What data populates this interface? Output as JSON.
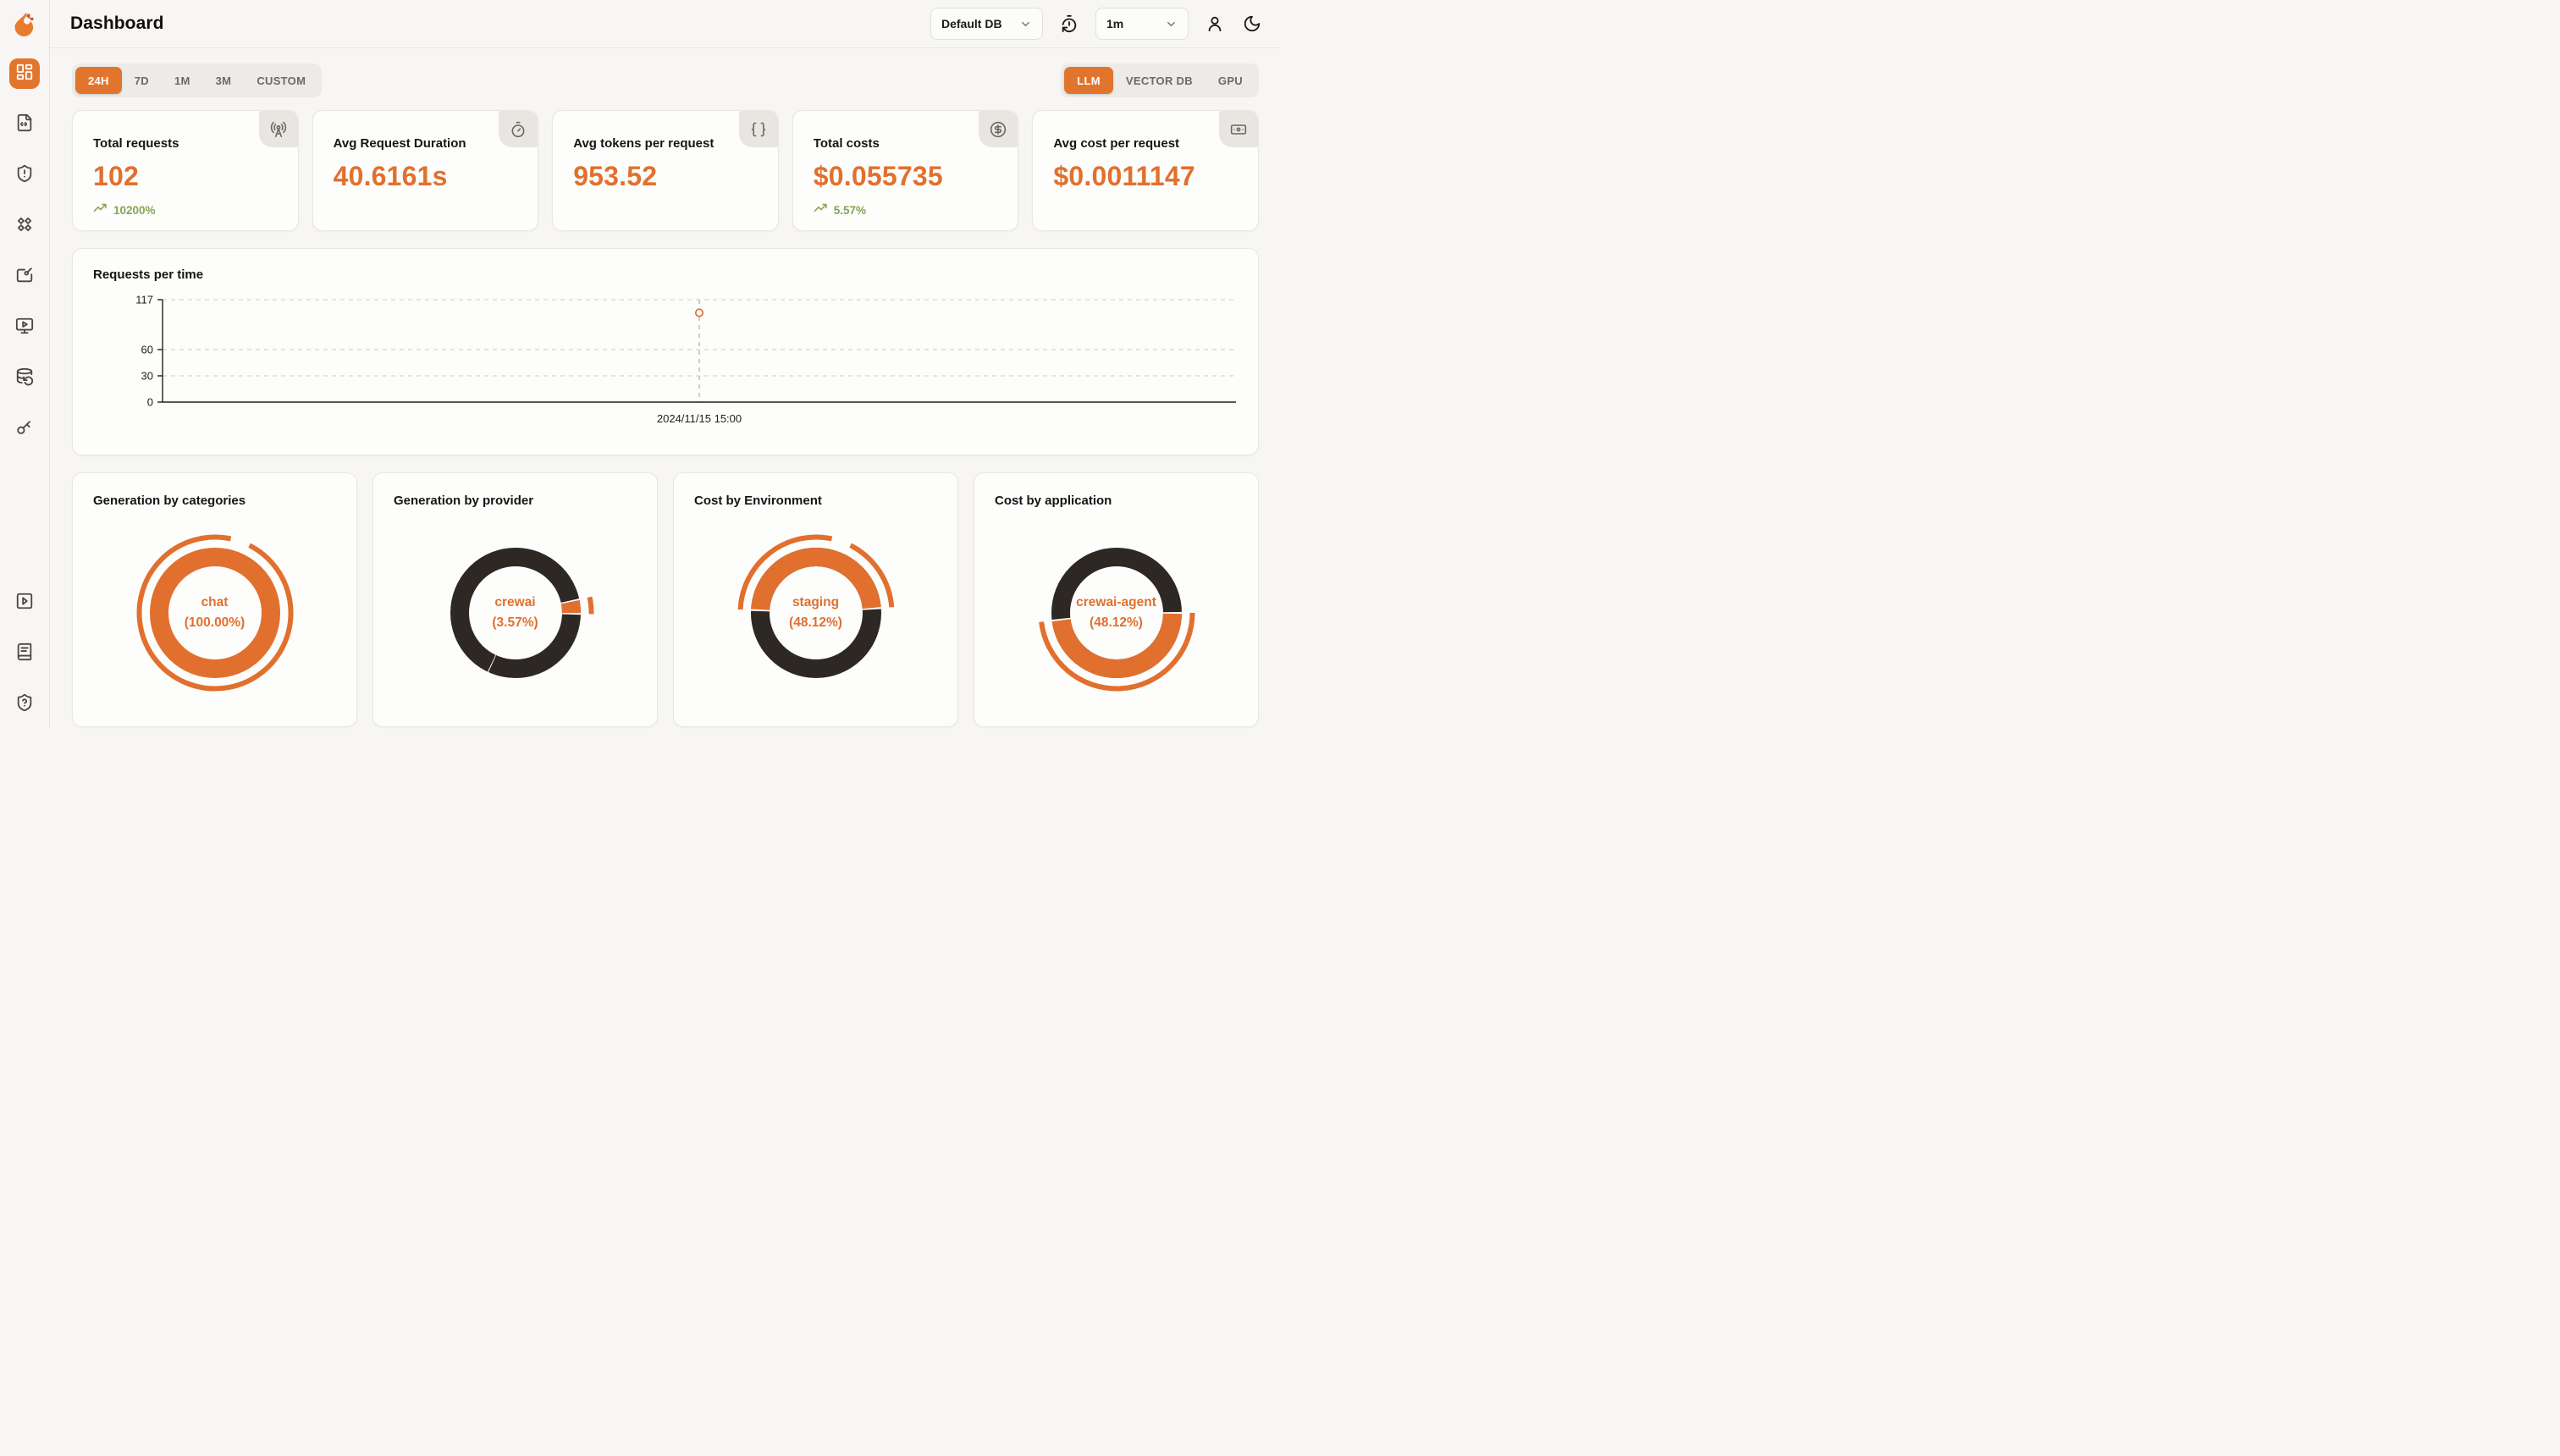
{
  "app": {
    "title": "Dashboard"
  },
  "colors": {
    "accent_orange": "#e1702f",
    "active_tab_orange": "#e2752e",
    "donut_dark": "#2e2824",
    "trend_green": "#84a552",
    "page_background": "#f7f6f4",
    "card_background": "#fdfdfc"
  },
  "header": {
    "db_select": {
      "value": "Default DB",
      "icon": "chevron-down-icon"
    },
    "interval_select": {
      "value": "1m",
      "icon": "chevron-down-icon"
    },
    "icons": [
      "timer-reset-icon",
      "user-icon",
      "moon-icon"
    ]
  },
  "sidebar": {
    "top_icons": [
      {
        "icon": "dashboard-grid-icon",
        "active": true
      },
      {
        "icon": "file-code-icon",
        "active": false
      },
      {
        "icon": "shield-alert-icon",
        "active": false
      },
      {
        "icon": "diamonds-icon",
        "active": false
      },
      {
        "icon": "edit-board-icon",
        "active": false
      },
      {
        "icon": "monitor-play-icon",
        "active": false
      },
      {
        "icon": "database-backup-icon",
        "active": false
      },
      {
        "icon": "key-icon",
        "active": false
      }
    ],
    "bottom_icons": [
      {
        "icon": "square-play-icon",
        "active": false
      },
      {
        "icon": "book-icon",
        "active": false
      },
      {
        "icon": "shield-question-icon",
        "active": false
      }
    ]
  },
  "filters": {
    "time_ranges": [
      {
        "label": "24H",
        "active": true
      },
      {
        "label": "7D",
        "active": false
      },
      {
        "label": "1M",
        "active": false
      },
      {
        "label": "3M",
        "active": false
      },
      {
        "label": "CUSTOM",
        "active": false
      }
    ],
    "resource_tabs": [
      {
        "label": "LLM",
        "active": true
      },
      {
        "label": "VECTOR DB",
        "active": false
      },
      {
        "label": "GPU",
        "active": false
      }
    ]
  },
  "stat_cards": [
    {
      "title": "Total requests",
      "value": "102",
      "trend": "10200%",
      "icon": "radio-tower-icon"
    },
    {
      "title": "Avg Request Duration",
      "value": "40.6161s",
      "trend": null,
      "icon": "timer-icon"
    },
    {
      "title": "Avg tokens per request",
      "value": "953.52",
      "trend": null,
      "icon": "braces-icon"
    },
    {
      "title": "Total costs",
      "value": "$0.055735",
      "trend": "5.57%",
      "icon": "dollar-circle-icon"
    },
    {
      "title": "Avg cost per request",
      "value": "$0.0011147",
      "trend": null,
      "icon": "banknote-icon"
    }
  ],
  "chart_data": [
    {
      "type": "line",
      "title": "Requests per time",
      "x": [
        "2024/11/15 15:00"
      ],
      "series": [
        {
          "name": "Requests",
          "values": [
            102
          ]
        }
      ],
      "ylim": [
        0,
        117
      ],
      "yticks": [
        0,
        30,
        60,
        117
      ],
      "xlabel": "",
      "ylabel": "",
      "grid": "horizontal-dashed",
      "marker": "hollow-circle",
      "crosshair": true
    },
    {
      "type": "pie",
      "title": "Generation by categories",
      "label": "chat",
      "pct_label": "(100.00%)",
      "segments": [
        {
          "name": "chat",
          "pct": 100.0,
          "color": "#e1702f"
        }
      ],
      "render": {
        "base": "#e1702f",
        "arcs": [],
        "dividers": [],
        "emphasis": [
          {
            "start": 27,
            "sweep": 345
          }
        ]
      }
    },
    {
      "type": "pie",
      "title": "Generation by provider",
      "label": "crewai",
      "pct_label": "(3.57%)",
      "segments": [
        {
          "name": "crewai",
          "pct": 3.57,
          "color": "#e1702f"
        },
        {
          "name": "",
          "pct": 96.43,
          "color": "#2e2824"
        }
      ],
      "render": {
        "base": "#2e2824",
        "arcs": [
          {
            "color": "#e1702f",
            "start": 78,
            "sweep": 12.9
          }
        ],
        "dividers": [
          {
            "a": 78,
            "w": 1.4
          },
          {
            "a": 90.9,
            "w": 1.4
          },
          {
            "a": 205,
            "w": 0.8
          }
        ],
        "emphasis": [
          {
            "start": 78,
            "sweep": 12.9
          }
        ]
      }
    },
    {
      "type": "pie",
      "title": "Cost by Environment",
      "label": "staging",
      "pct_label": "(48.12%)",
      "segments": [
        {
          "name": "staging",
          "pct": 48.12,
          "color": "#e1702f"
        },
        {
          "name": "",
          "pct": 51.88,
          "color": "#2e2824"
        }
      ],
      "render": {
        "base": "#2e2824",
        "arcs": [
          {
            "color": "#e1702f",
            "start": 272.5,
            "sweep": 173.2
          }
        ],
        "dividers": [
          {
            "a": 272.5,
            "w": 1.6
          },
          {
            "a": 85.7,
            "w": 1.6
          }
        ],
        "emphasis": [
          {
            "start": 272.5,
            "sweep": 99.5
          },
          {
            "start": 27,
            "sweep": 58.7
          }
        ]
      }
    },
    {
      "type": "pie",
      "title": "Cost by application",
      "label": "crewai-agent",
      "pct_label": "(48.12%)",
      "segments": [
        {
          "name": "crewai-agent",
          "pct": 48.12,
          "color": "#e1702f"
        },
        {
          "name": "",
          "pct": 51.88,
          "color": "#2e2824"
        }
      ],
      "render": {
        "base": "#2e2824",
        "arcs": [
          {
            "color": "#e1702f",
            "start": 90,
            "sweep": 173.2
          }
        ],
        "dividers": [
          {
            "a": 90,
            "w": 1.6
          },
          {
            "a": 263.2,
            "w": 1.6
          }
        ],
        "emphasis": [
          {
            "start": 90,
            "sweep": 173.2
          }
        ]
      }
    }
  ]
}
